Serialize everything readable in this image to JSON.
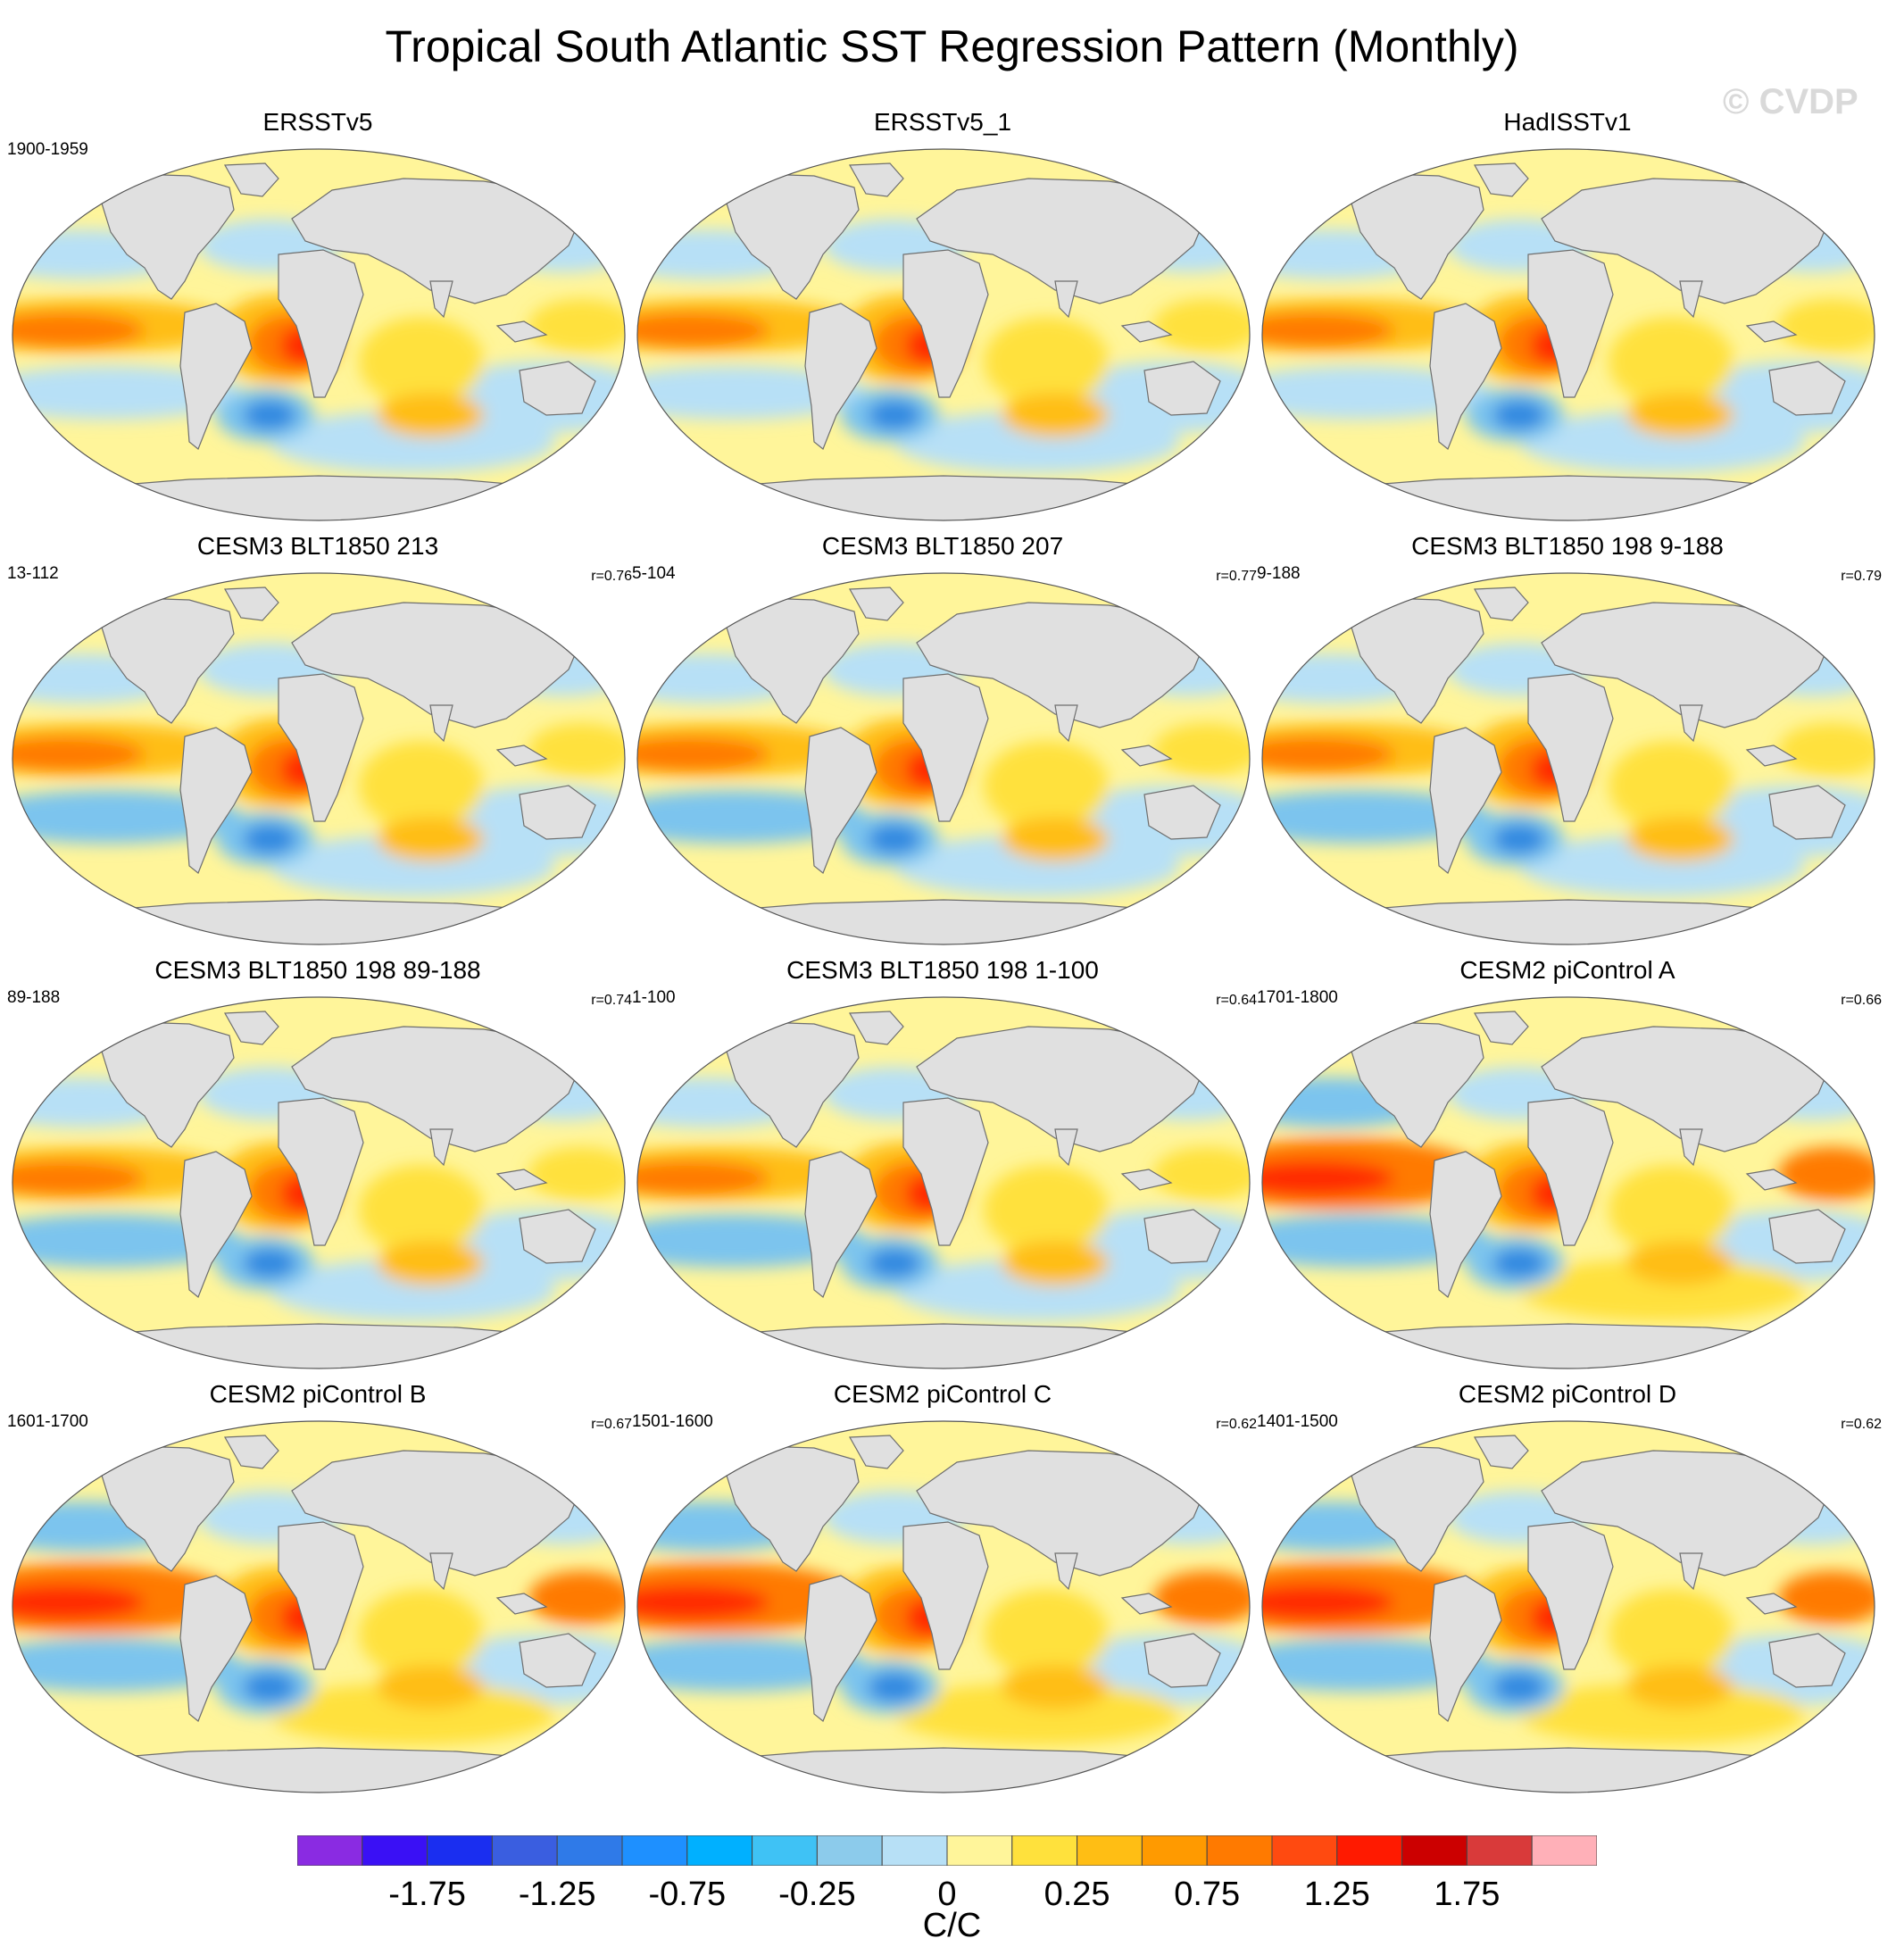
{
  "title": "Tropical South Atlantic SST Regression Pattern (Monthly)",
  "watermark": "© CVDP",
  "panels": [
    {
      "title": "ERSSTv5",
      "period": "1900-1959",
      "r": ""
    },
    {
      "title": "ERSSTv5_1",
      "period": "",
      "r": ""
    },
    {
      "title": "HadISSTv1",
      "period": "",
      "r": ""
    },
    {
      "title": "CESM3 BLT1850 213",
      "period": "13-112",
      "r": "r=0.76"
    },
    {
      "title": "CESM3 BLT1850 207",
      "period": "5-104",
      "r": "r=0.77"
    },
    {
      "title": "CESM3 BLT1850 198 9-188",
      "period": "9-188",
      "r": "r=0.79"
    },
    {
      "title": "CESM3 BLT1850 198 89-188",
      "period": "89-188",
      "r": "r=0.74"
    },
    {
      "title": "CESM3 BLT1850 198 1-100",
      "period": "1-100",
      "r": "r=0.64"
    },
    {
      "title": "CESM2 piControl A",
      "period": "1701-1800",
      "r": "r=0.66"
    },
    {
      "title": "CESM2 piControl B",
      "period": "1601-1700",
      "r": "r=0.67"
    },
    {
      "title": "CESM2 piControl C",
      "period": "1501-1600",
      "r": "r=0.62"
    },
    {
      "title": "CESM2 piControl D",
      "period": "1401-1500",
      "r": "r=0.62"
    }
  ],
  "colorbar": {
    "colors": [
      "#8a2be2",
      "#3a10f5",
      "#1a2ef0",
      "#3a5ee0",
      "#2f7ae8",
      "#1e90ff",
      "#00b0ff",
      "#3fc2f5",
      "#8ccbeb",
      "#b7e0f6",
      "#fff59a",
      "#ffe13c",
      "#ffbe14",
      "#ff9a00",
      "#ff7a00",
      "#ff4a10",
      "#ff1a00",
      "#cc0000",
      "#d93a3a",
      "#ffb0b8"
    ],
    "labels": [
      "-1.75",
      "-1.25",
      "-0.75",
      "-0.25",
      "0",
      "0.25",
      "0.75",
      "1.25",
      "1.75"
    ],
    "units": "C/C"
  },
  "colors": {
    "ocean_neutral": "#fff59a",
    "land": "#e0e0e0",
    "warm_1": "#ffe13c",
    "warm_2": "#ffbe14",
    "warm_3": "#ff7a00",
    "warm_4": "#ff2a00",
    "cool_1": "#b7e0f6",
    "cool_2": "#7cc4ee",
    "cool_3": "#2f88e0"
  }
}
